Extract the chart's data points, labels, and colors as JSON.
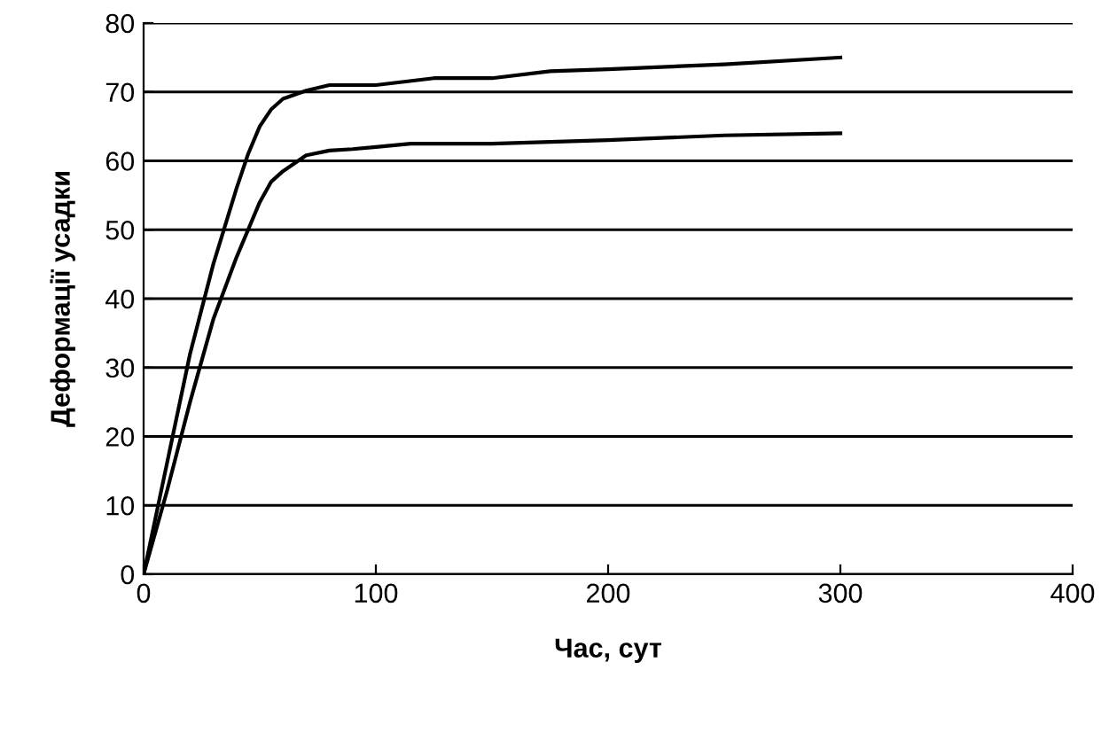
{
  "chart_data": {
    "type": "line",
    "xlabel": "Час, сут",
    "ylabel": "Деформації усадки",
    "xlim": [
      0,
      400
    ],
    "xticks": [
      0,
      100,
      200,
      300,
      400
    ],
    "ylim": [
      0,
      80
    ],
    "yticks": [
      0,
      10,
      20,
      30,
      40,
      50,
      60,
      70,
      80
    ],
    "grid": "y",
    "marker": "none",
    "line_style": "solid",
    "legend": false,
    "series": [
      {
        "color": "#000000",
        "x": [
          0,
          10,
          20,
          30,
          40,
          45,
          50,
          55,
          60,
          70,
          80,
          100,
          125,
          150,
          175,
          200,
          250,
          300
        ],
        "values": [
          0,
          16,
          32,
          45,
          56,
          61,
          65,
          67.5,
          69,
          70.2,
          71,
          71,
          72,
          72,
          73,
          73.3,
          74,
          75
        ]
      },
      {
        "color": "#000000",
        "x": [
          0,
          10,
          20,
          30,
          40,
          50,
          55,
          60,
          70,
          80,
          90,
          100,
          115,
          150,
          200,
          250,
          300
        ],
        "values": [
          0,
          12,
          25,
          37,
          46,
          54,
          57,
          58.5,
          60.8,
          61.5,
          61.7,
          62,
          62.5,
          62.5,
          63,
          63.7,
          64
        ]
      }
    ]
  }
}
